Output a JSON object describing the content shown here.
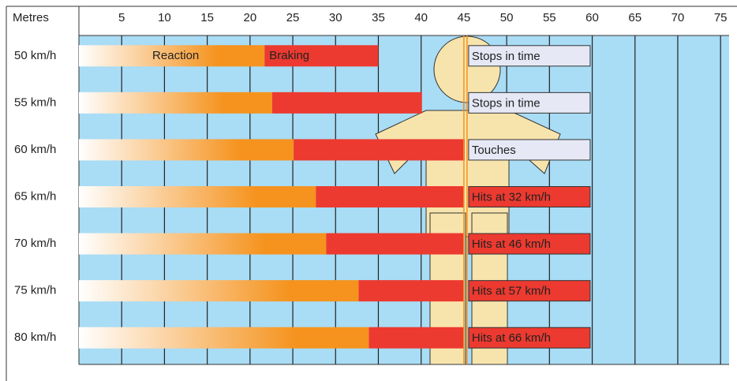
{
  "chart_data": {
    "type": "stacked-barh",
    "x_label": "Metres",
    "categories": [
      "50 km/h",
      "55 km/h",
      "60 km/h",
      "65 km/h",
      "70 km/h",
      "75 km/h",
      "80 km/h"
    ],
    "series": [
      {
        "name": "Reaction",
        "color": "#f5931e",
        "values": [
          21.7,
          22.6,
          25.1,
          27.7,
          28.9,
          32.7,
          33.9
        ]
      },
      {
        "name": "Braking",
        "color": "#ec3a30",
        "values": [
          13.3,
          17.5,
          20.0,
          17.3,
          16.1,
          12.3,
          11.1
        ]
      }
    ],
    "xlim": [
      0,
      76
    ],
    "xticks": [
      5,
      10,
      15,
      20,
      25,
      30,
      35,
      40,
      45,
      50,
      55,
      60,
      65,
      70,
      75
    ],
    "marker_line": 45,
    "marker_color": "#f5931e",
    "annotations": [
      {
        "text": "Stops in time",
        "fill": "#e6e8f5",
        "text_color": "#222"
      },
      {
        "text": "Stops in time",
        "fill": "#e6e8f5",
        "text_color": "#222"
      },
      {
        "text": "Touches",
        "fill": "#e6e8f5",
        "text_color": "#222"
      },
      {
        "text": "Hits at 32 km/h",
        "fill": "#ec3a30",
        "text_color": "#fff"
      },
      {
        "text": "Hits at 46 km/h",
        "fill": "#ec3a30",
        "text_color": "#fff"
      },
      {
        "text": "Hits at 57 km/h",
        "fill": "#ec3a30",
        "text_color": "#fff"
      },
      {
        "text": "Hits at 66 km/h",
        "fill": "#ec3a30",
        "text_color": "#fff"
      }
    ],
    "grid": true
  }
}
